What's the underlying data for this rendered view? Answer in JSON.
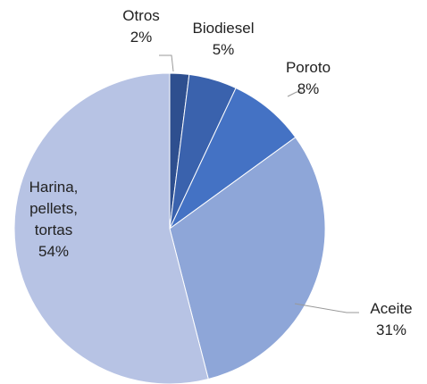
{
  "chart_data": {
    "type": "pie",
    "categories": [
      "Otros",
      "Biodiesel",
      "Poroto",
      "Aceite",
      "Harina, pellets, tortas"
    ],
    "values": [
      2,
      5,
      8,
      31,
      54
    ],
    "value_labels": [
      "2%",
      "5%",
      "8%",
      "31%",
      "54%"
    ],
    "colors": [
      "#2e4f8f",
      "#3a62ad",
      "#4472c4",
      "#8ea6d8",
      "#b7c3e4"
    ]
  }
}
